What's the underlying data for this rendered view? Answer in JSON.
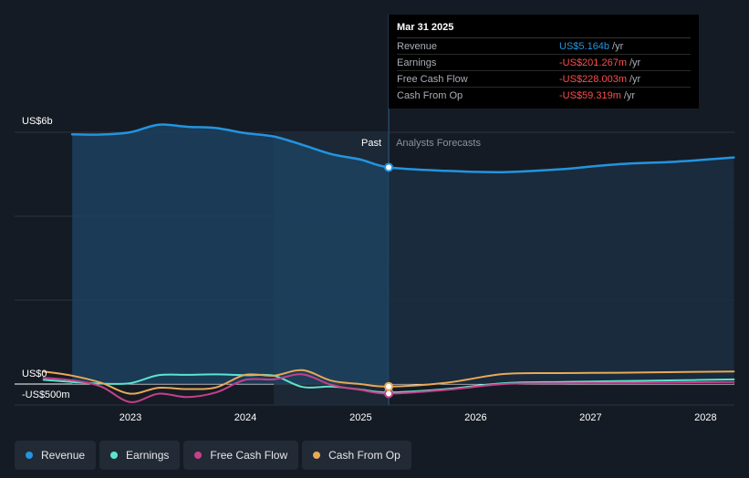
{
  "colors": {
    "revenue": "#2394df",
    "earnings": "#5be4cf",
    "free_cash_flow": "#c6408a",
    "cash_from_op": "#e8a957",
    "negative": "#ff4d4d",
    "grid": "#2a3340",
    "background": "#151b24"
  },
  "tooltip": {
    "date": "Mar 31 2025",
    "rows": [
      {
        "label": "Revenue",
        "value": "US$5.164b",
        "unit": "/yr",
        "color": "#2394df"
      },
      {
        "label": "Earnings",
        "value": "-US$201.267m",
        "unit": "/yr",
        "color": "#ff4d4d"
      },
      {
        "label": "Free Cash Flow",
        "value": "-US$228.003m",
        "unit": "/yr",
        "color": "#ff4d4d"
      },
      {
        "label": "Cash From Op",
        "value": "-US$59.319m",
        "unit": "/yr",
        "color": "#ff4d4d"
      }
    ]
  },
  "regions": {
    "past": "Past",
    "forecast": "Analysts Forecasts"
  },
  "legend": [
    {
      "label": "Revenue",
      "color": "#2394df",
      "icon": "revenue-dot-icon"
    },
    {
      "label": "Earnings",
      "color": "#5be4cf",
      "icon": "earnings-dot-icon"
    },
    {
      "label": "Free Cash Flow",
      "color": "#c6408a",
      "icon": "free-cash-flow-dot-icon"
    },
    {
      "label": "Cash From Op",
      "color": "#e8a957",
      "icon": "cash-from-op-dot-icon"
    }
  ],
  "chart_data": {
    "type": "line",
    "x_axis_type": "time",
    "xlim": [
      "2022-03-31",
      "2028-03-31"
    ],
    "ylim": [
      -500,
      6000
    ],
    "y_unit": "US$ millions",
    "y_tick_labels": [
      {
        "value": 6000,
        "label": "US$6b"
      },
      {
        "value": 0,
        "label": "US$0"
      },
      {
        "value": -500,
        "label": "-US$500m"
      }
    ],
    "x_tick_labels": [
      "2023",
      "2024",
      "2025",
      "2026",
      "2027",
      "2028"
    ],
    "past_forecast_divider": "2025-03-31",
    "highlight_band": [
      "2024-03-31",
      "2025-03-31"
    ],
    "grid": true,
    "series": [
      {
        "name": "Revenue",
        "key": "revenue",
        "points": [
          [
            "2022-06-30",
            5950
          ],
          [
            "2022-09-30",
            5945
          ],
          [
            "2022-12-31",
            6000
          ],
          [
            "2023-03-31",
            6180
          ],
          [
            "2023-06-30",
            6130
          ],
          [
            "2023-09-30",
            6100
          ],
          [
            "2023-12-31",
            5980
          ],
          [
            "2024-03-31",
            5900
          ],
          [
            "2024-06-30",
            5700
          ],
          [
            "2024-09-30",
            5480
          ],
          [
            "2024-12-31",
            5350
          ],
          [
            "2025-03-31",
            5164
          ],
          [
            "2025-09-30",
            5080
          ],
          [
            "2026-03-31",
            5050
          ],
          [
            "2026-09-30",
            5120
          ],
          [
            "2027-03-31",
            5240
          ],
          [
            "2027-09-30",
            5300
          ],
          [
            "2028-03-31",
            5400
          ]
        ]
      },
      {
        "name": "Earnings",
        "key": "earnings",
        "points": [
          [
            "2022-03-31",
            100
          ],
          [
            "2022-06-30",
            50
          ],
          [
            "2022-09-30",
            10
          ],
          [
            "2022-12-31",
            20
          ],
          [
            "2023-03-31",
            210
          ],
          [
            "2023-06-30",
            220
          ],
          [
            "2023-09-30",
            230
          ],
          [
            "2023-12-31",
            210
          ],
          [
            "2024-03-31",
            200
          ],
          [
            "2024-06-30",
            -70
          ],
          [
            "2024-09-30",
            -60
          ],
          [
            "2024-12-31",
            -130
          ],
          [
            "2025-03-31",
            -201
          ],
          [
            "2025-09-30",
            -120
          ],
          [
            "2026-03-31",
            20
          ],
          [
            "2026-09-30",
            50
          ],
          [
            "2027-03-31",
            70
          ],
          [
            "2027-09-30",
            90
          ],
          [
            "2028-03-31",
            110
          ]
        ]
      },
      {
        "name": "Free Cash Flow",
        "key": "free_cash_flow",
        "points": [
          [
            "2022-03-31",
            150
          ],
          [
            "2022-06-30",
            90
          ],
          [
            "2022-09-30",
            -60
          ],
          [
            "2022-12-31",
            -430
          ],
          [
            "2023-03-31",
            -230
          ],
          [
            "2023-06-30",
            -310
          ],
          [
            "2023-09-30",
            -200
          ],
          [
            "2023-12-31",
            100
          ],
          [
            "2024-03-31",
            110
          ],
          [
            "2024-06-30",
            230
          ],
          [
            "2024-09-30",
            -20
          ],
          [
            "2024-12-31",
            -140
          ],
          [
            "2025-03-31",
            -228
          ],
          [
            "2025-09-30",
            -140
          ],
          [
            "2026-03-31",
            0
          ],
          [
            "2026-09-30",
            20
          ],
          [
            "2027-03-31",
            30
          ],
          [
            "2027-09-30",
            40
          ],
          [
            "2028-03-31",
            50
          ]
        ]
      },
      {
        "name": "Cash From Op",
        "key": "cash_from_op",
        "points": [
          [
            "2022-03-31",
            300
          ],
          [
            "2022-06-30",
            200
          ],
          [
            "2022-09-30",
            30
          ],
          [
            "2022-12-31",
            -230
          ],
          [
            "2023-03-31",
            -90
          ],
          [
            "2023-06-30",
            -120
          ],
          [
            "2023-09-30",
            -80
          ],
          [
            "2023-12-31",
            220
          ],
          [
            "2024-03-31",
            200
          ],
          [
            "2024-06-30",
            330
          ],
          [
            "2024-09-30",
            80
          ],
          [
            "2024-12-31",
            0
          ],
          [
            "2025-03-31",
            -59
          ],
          [
            "2025-09-30",
            30
          ],
          [
            "2026-03-31",
            240
          ],
          [
            "2026-09-30",
            260
          ],
          [
            "2027-03-31",
            270
          ],
          [
            "2027-09-30",
            285
          ],
          [
            "2028-03-31",
            300
          ]
        ]
      }
    ]
  }
}
